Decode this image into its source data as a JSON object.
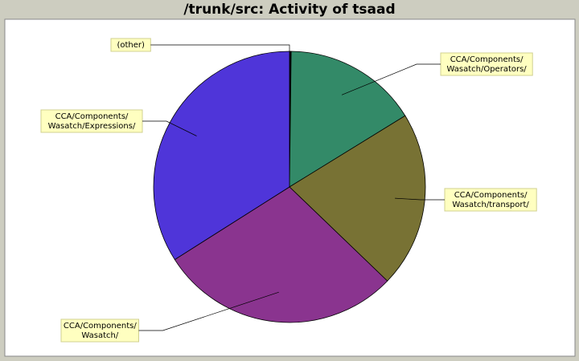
{
  "title": "/trunk/src: Activity of tsaad",
  "chart_data": {
    "type": "pie",
    "title": "/trunk/src: Activity of tsaad",
    "slices": [
      {
        "label": "(other)",
        "lines": [
          "(other)"
        ],
        "value": 0.2,
        "color": "#000000"
      },
      {
        "label": "CCA/Components/Wasatch/Operators/",
        "lines": [
          "CCA/Components/",
          "Wasatch/Operators/"
        ],
        "value": 16.0,
        "color": "#338a68"
      },
      {
        "label": "CCA/Components/Wasatch/transport/",
        "lines": [
          "CCA/Components/",
          "Wasatch/transport/"
        ],
        "value": 21.0,
        "color": "#787234"
      },
      {
        "label": "CCA/Components/Wasatch/",
        "lines": [
          "CCA/Components/",
          "Wasatch/"
        ],
        "value": 28.8,
        "color": "#8a348f"
      },
      {
        "label": "CCA/Components/Wasatch/Expressions/",
        "lines": [
          "CCA/Components/",
          "Wasatch/Expressions/"
        ],
        "value": 34.0,
        "color": "#4f35d9"
      }
    ]
  }
}
